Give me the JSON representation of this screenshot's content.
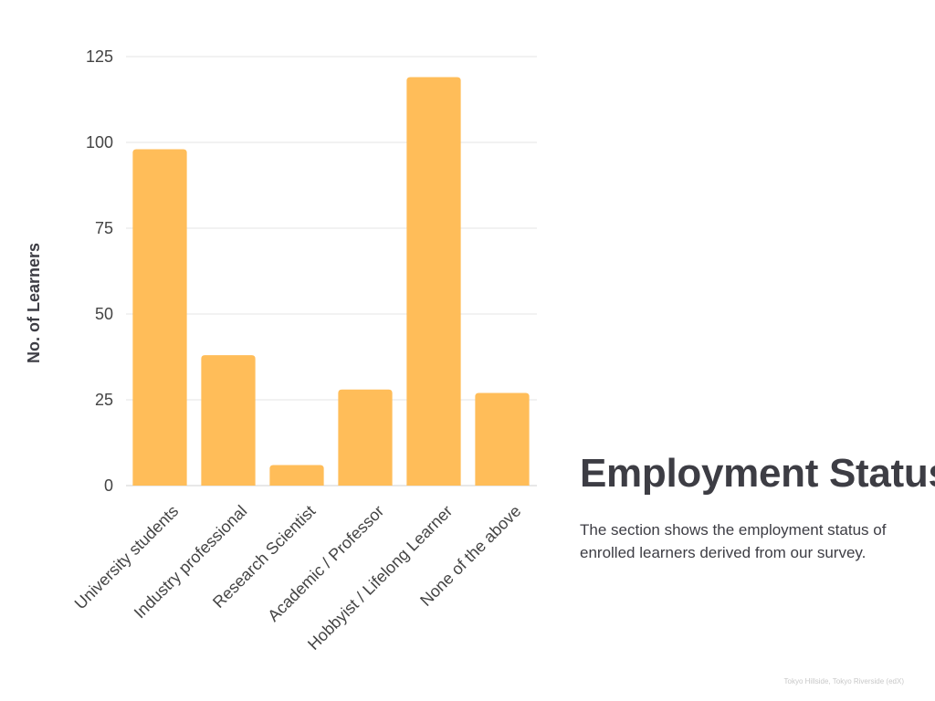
{
  "chart_data": {
    "type": "bar",
    "categories": [
      "University students",
      "Industry professional",
      "Research Scientist",
      "Academic / Professor",
      "Hobbyist / Lifelong Learner",
      "None of the above"
    ],
    "values": [
      98,
      38,
      6,
      28,
      119,
      27
    ],
    "ylabel": "No. of Learners",
    "xlabel": "",
    "ylim": [
      0,
      125
    ],
    "yticks": [
      0,
      25,
      50,
      75,
      100,
      125
    ],
    "grid": true,
    "bar_color": "#ffbd59",
    "grid_color": "#e6e6e6"
  },
  "section": {
    "title": "Employment Status",
    "description": "The section shows the employment status of enrolled learners derived from our survey."
  },
  "footer": {
    "note": "Tokyo Hillside, Tokyo Riverside (edX)"
  }
}
